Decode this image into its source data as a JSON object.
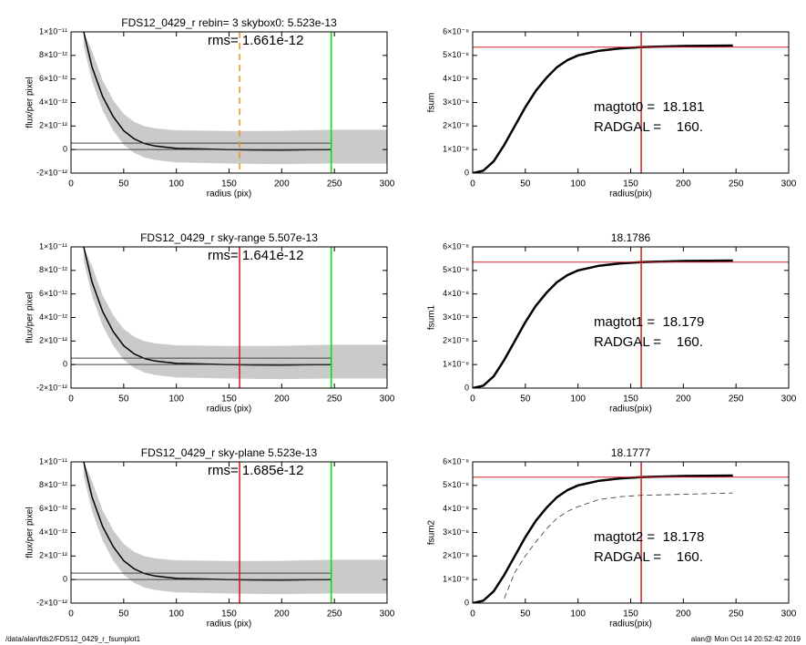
{
  "chart_data": [
    {
      "type": "line",
      "title": "FDS12_0429_r rebin= 3    skybox0:  5.523e-13",
      "x_label": "radius (pix)",
      "y_label": "flux/per pixel",
      "xlim": [
        0,
        300
      ],
      "xticks": [
        0,
        50,
        100,
        150,
        200,
        250,
        300
      ],
      "ylim": [
        -2e-12,
        1e-11
      ],
      "yticks": [
        {
          "value": -2e-12,
          "label": "-2×10⁻¹²"
        },
        0,
        {
          "value": 2e-12,
          "label": "2×10⁻¹²"
        },
        {
          "value": 4e-12,
          "label": "4×10⁻¹²"
        },
        {
          "value": 6e-12,
          "label": "6×10⁻¹²"
        },
        {
          "value": 8e-12,
          "label": "8×10⁻¹²"
        },
        {
          "value": 1e-11,
          "label": "1×10⁻¹¹"
        }
      ],
      "x": [
        12,
        20,
        30,
        40,
        50,
        60,
        70,
        80,
        100,
        125,
        150,
        175,
        200,
        225,
        247
      ],
      "series": [
        {
          "color": "#000000",
          "values": [
            1e-11,
            7e-12,
            4.5e-12,
            2.8e-12,
            1.6e-12,
            9e-13,
            5e-13,
            3e-13,
            1e-13,
            5e-14,
            0,
            -3e-14,
            -5e-14,
            -2e-14,
            0
          ]
        }
      ],
      "hlines": [
        {
          "value": 5.5e-13,
          "color": "#444444"
        },
        {
          "value": 0,
          "color": "#444444"
        }
      ],
      "vlines": [
        {
          "value": 160,
          "color": "#f09020",
          "dash": true
        },
        {
          "value": 247,
          "color": "#00dd00",
          "dash": false
        }
      ],
      "annotations": [
        "rms= 1.661e-12"
      ]
    },
    {
      "type": "line",
      "x_label": "radius(pix)",
      "y_label": "fsum",
      "xlim": [
        0,
        300
      ],
      "xticks": [
        0,
        50,
        100,
        150,
        200,
        250,
        300
      ],
      "ylim": [
        0,
        6e-08
      ],
      "yticks": [
        0,
        {
          "value": 1e-08,
          "label": "1×10⁻⁸"
        },
        {
          "value": 2e-08,
          "label": "2×10⁻⁸"
        },
        {
          "value": 3e-08,
          "label": "3×10⁻⁸"
        },
        {
          "value": 4e-08,
          "label": "4×10⁻⁸"
        },
        {
          "value": 5e-08,
          "label": "5×10⁻⁸"
        },
        {
          "value": 6e-08,
          "label": "6×10⁻⁸"
        }
      ],
      "x": [
        0,
        10,
        20,
        30,
        40,
        50,
        60,
        70,
        80,
        90,
        100,
        120,
        140,
        160,
        200,
        247
      ],
      "series": [
        {
          "color": "#000000",
          "values": [
            0,
            1e-09,
            5e-09,
            1.2e-08,
            2e-08,
            2.8e-08,
            3.5e-08,
            4.05e-08,
            4.5e-08,
            4.8e-08,
            5e-08,
            5.2e-08,
            5.3e-08,
            5.35e-08,
            5.4e-08,
            5.42e-08
          ]
        }
      ],
      "hlines": [
        {
          "value": 5.35e-08,
          "color": "#cc2222"
        }
      ],
      "vlines": [
        {
          "value": 160,
          "color": "#cc2222",
          "dash": false
        }
      ],
      "annotations": [
        "magtot0 =  18.181",
        "RADGAL =    160."
      ]
    },
    {
      "type": "line",
      "title": "FDS12_0429_r sky-range  5.507e-13",
      "x_label": "radius (pix)",
      "y_label": "flux/per pixel",
      "xlim": [
        0,
        300
      ],
      "xticks": [
        0,
        50,
        100,
        150,
        200,
        250,
        300
      ],
      "ylim": [
        -2e-12,
        1e-11
      ],
      "yticks": [
        {
          "value": -2e-12,
          "label": "-2×10⁻¹²"
        },
        0,
        {
          "value": 2e-12,
          "label": "2×10⁻¹²"
        },
        {
          "value": 4e-12,
          "label": "4×10⁻¹²"
        },
        {
          "value": 6e-12,
          "label": "6×10⁻¹²"
        },
        {
          "value": 8e-12,
          "label": "8×10⁻¹²"
        },
        {
          "value": 1e-11,
          "label": "1×10⁻¹¹"
        }
      ],
      "x": [
        12,
        20,
        30,
        40,
        50,
        60,
        70,
        80,
        100,
        125,
        150,
        175,
        200,
        225,
        247
      ],
      "series": [
        {
          "color": "#000000",
          "values": [
            1e-11,
            7e-12,
            4.5e-12,
            2.8e-12,
            1.6e-12,
            9e-13,
            5e-13,
            3e-13,
            1e-13,
            5e-14,
            0,
            -3e-14,
            -5e-14,
            -2e-14,
            0
          ]
        }
      ],
      "hlines": [
        {
          "value": 5.5e-13,
          "color": "#444444"
        },
        {
          "value": 0,
          "color": "#444444"
        }
      ],
      "vlines": [
        {
          "value": 160,
          "color": "#dd1111",
          "dash": false
        },
        {
          "value": 247,
          "color": "#00dd00",
          "dash": false
        }
      ],
      "annotations": [
        "rms= 1.641e-12"
      ]
    },
    {
      "type": "line",
      "title": "18.1786",
      "x_label": "radius(pix)",
      "y_label": "fsum1",
      "xlim": [
        0,
        300
      ],
      "xticks": [
        0,
        50,
        100,
        150,
        200,
        250,
        300
      ],
      "ylim": [
        0,
        6e-08
      ],
      "yticks": [
        0,
        {
          "value": 1e-08,
          "label": "1×10⁻⁸"
        },
        {
          "value": 2e-08,
          "label": "2×10⁻⁸"
        },
        {
          "value": 3e-08,
          "label": "3×10⁻⁸"
        },
        {
          "value": 4e-08,
          "label": "4×10⁻⁸"
        },
        {
          "value": 5e-08,
          "label": "5×10⁻⁸"
        },
        {
          "value": 6e-08,
          "label": "6×10⁻⁸"
        }
      ],
      "x": [
        0,
        10,
        20,
        30,
        40,
        50,
        60,
        70,
        80,
        90,
        100,
        120,
        140,
        160,
        200,
        247
      ],
      "series": [
        {
          "color": "#000000",
          "values": [
            0,
            1e-09,
            5e-09,
            1.2e-08,
            2e-08,
            2.8e-08,
            3.5e-08,
            4.05e-08,
            4.5e-08,
            4.8e-08,
            5e-08,
            5.2e-08,
            5.3e-08,
            5.35e-08,
            5.4e-08,
            5.42e-08
          ]
        }
      ],
      "hlines": [
        {
          "value": 5.35e-08,
          "color": "#cc2222"
        }
      ],
      "vlines": [
        {
          "value": 160,
          "color": "#cc2222",
          "dash": false
        }
      ],
      "annotations": [
        "magtot1 =  18.179",
        "RADGAL =    160."
      ]
    },
    {
      "type": "line",
      "title": "FDS12_0429_r sky-plane  5.523e-13",
      "x_label": "radius (pix)",
      "y_label": "flux/per pixel",
      "xlim": [
        0,
        300
      ],
      "xticks": [
        0,
        50,
        100,
        150,
        200,
        250,
        300
      ],
      "ylim": [
        -2e-12,
        1e-11
      ],
      "yticks": [
        {
          "value": -2e-12,
          "label": "-2×10⁻¹²"
        },
        0,
        {
          "value": 2e-12,
          "label": "2×10⁻¹²"
        },
        {
          "value": 4e-12,
          "label": "4×10⁻¹²"
        },
        {
          "value": 6e-12,
          "label": "6×10⁻¹²"
        },
        {
          "value": 8e-12,
          "label": "8×10⁻¹²"
        },
        {
          "value": 1e-11,
          "label": "1×10⁻¹¹"
        }
      ],
      "x": [
        12,
        20,
        30,
        40,
        50,
        60,
        70,
        80,
        100,
        125,
        150,
        175,
        200,
        225,
        247
      ],
      "series": [
        {
          "color": "#000000",
          "values": [
            1e-11,
            7e-12,
            4.5e-12,
            2.8e-12,
            1.6e-12,
            9e-13,
            5e-13,
            3e-13,
            1e-13,
            5e-14,
            0,
            -3e-14,
            -5e-14,
            -2e-14,
            0
          ]
        }
      ],
      "hlines": [
        {
          "value": 5.5e-13,
          "color": "#444444"
        },
        {
          "value": 0,
          "color": "#444444"
        }
      ],
      "vlines": [
        {
          "value": 160,
          "color": "#dd1111",
          "dash": false
        },
        {
          "value": 247,
          "color": "#00dd00",
          "dash": false
        }
      ],
      "annotations": [
        "rms= 1.685e-12"
      ]
    },
    {
      "type": "line",
      "title": "18.1777",
      "x_label": "radius(pix)",
      "y_label": "fsum2",
      "xlim": [
        0,
        300
      ],
      "xticks": [
        0,
        50,
        100,
        150,
        200,
        250,
        300
      ],
      "ylim": [
        0,
        6e-08
      ],
      "yticks": [
        0,
        {
          "value": 1e-08,
          "label": "1×10⁻⁸"
        },
        {
          "value": 2e-08,
          "label": "2×10⁻⁸"
        },
        {
          "value": 3e-08,
          "label": "3×10⁻⁸"
        },
        {
          "value": 4e-08,
          "label": "4×10⁻⁸"
        },
        {
          "value": 5e-08,
          "label": "5×10⁻⁸"
        },
        {
          "value": 6e-08,
          "label": "6×10⁻⁸"
        }
      ],
      "x": [
        0,
        10,
        20,
        30,
        40,
        50,
        60,
        70,
        80,
        90,
        100,
        120,
        140,
        160,
        200,
        247
      ],
      "series": [
        {
          "color": "#000000",
          "values": [
            0,
            1e-09,
            5e-09,
            1.2e-08,
            2e-08,
            2.8e-08,
            3.5e-08,
            4.05e-08,
            4.5e-08,
            4.8e-08,
            5e-08,
            5.2e-08,
            5.3e-08,
            5.35e-08,
            5.4e-08,
            5.42e-08
          ]
        },
        {
          "color": "#333333",
          "dash": true,
          "values": [
            null,
            null,
            null,
            2e-09,
            1.3e-08,
            2e-08,
            2.6e-08,
            3.15e-08,
            3.6e-08,
            3.9e-08,
            4.1e-08,
            4.4e-08,
            4.52e-08,
            4.58e-08,
            4.62e-08,
            4.68e-08
          ]
        }
      ],
      "hlines": [
        {
          "value": 5.35e-08,
          "color": "#cc2222"
        }
      ],
      "vlines": [
        {
          "value": 160,
          "color": "#cc2222",
          "dash": false
        }
      ],
      "annotations": [
        "magtot2 =  18.178",
        "RADGAL =    160."
      ]
    }
  ],
  "footer": {
    "left": "/data/alan/fds2/FDS12_0429_r_fsumplot1",
    "right": "alan@  Mon Oct 14 20:52:42 2019"
  }
}
